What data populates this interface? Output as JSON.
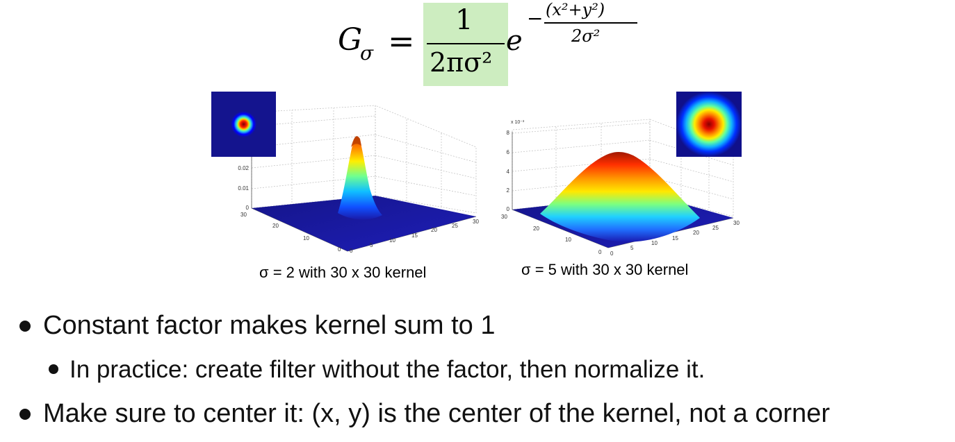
{
  "formula": {
    "lhs": "G",
    "lhs_sub": "σ",
    "eq": "=",
    "numerator": "1",
    "denominator": "2πσ²",
    "base": "e",
    "exp_minus": "−",
    "exp_numerator": "(x²+y²)",
    "exp_denominator": "2σ²",
    "highlight_color": "#cdedc0"
  },
  "plots": [
    {
      "sigma": 2,
      "kernel": 30,
      "caption": "σ = 2 with 30 x 30 kernel",
      "z_ticks": [
        "0",
        "0.01",
        "0.02"
      ],
      "scale_label": "",
      "x_ticks": [
        "0",
        "5",
        "10",
        "15",
        "20",
        "25",
        "30"
      ],
      "y_ticks": [
        "0",
        "10",
        "20",
        "30"
      ]
    },
    {
      "sigma": 5,
      "kernel": 30,
      "caption": "σ = 5 with 30 x 30 kernel",
      "z_ticks": [
        "0",
        "2",
        "4",
        "6",
        "8"
      ],
      "scale_label": "x 10⁻³",
      "x_ticks": [
        "0",
        "5",
        "10",
        "15",
        "20",
        "25",
        "30"
      ],
      "y_ticks": [
        "0",
        "10",
        "20",
        "30"
      ]
    }
  ],
  "bullets": [
    {
      "level": 1,
      "text": "Constant factor makes kernel sum to 1"
    },
    {
      "level": 2,
      "text": "In practice: create filter without the factor, then normalize it."
    },
    {
      "level": 1,
      "text": "Make sure to center it: (x, y) is the center of the kernel, not a corner"
    }
  ]
}
